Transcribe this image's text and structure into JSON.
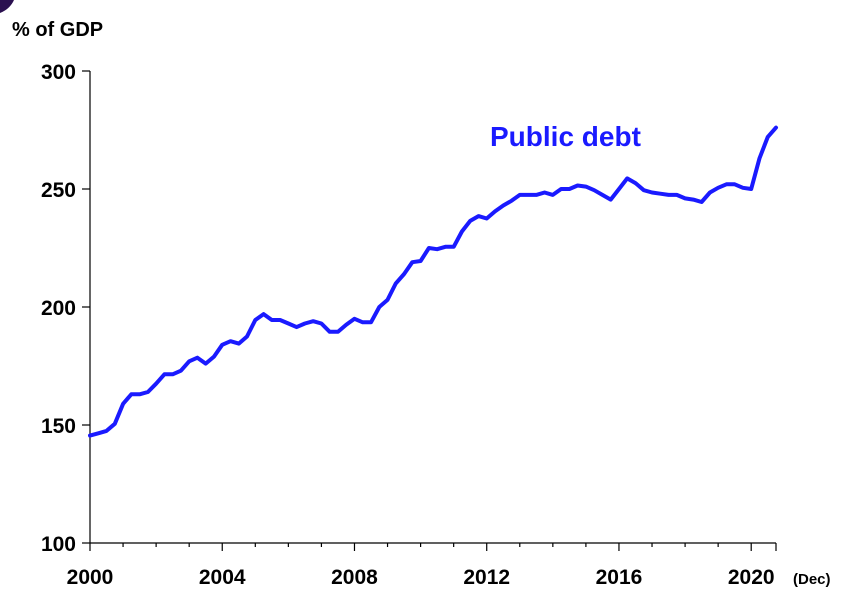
{
  "chart_data": {
    "type": "line",
    "ylabel": "% of GDP",
    "xlabel": "",
    "x_unit_note": "(Dec)",
    "ylim": [
      100,
      300
    ],
    "xlim": [
      2000,
      2020.75
    ],
    "yticks": [
      100,
      150,
      200,
      250,
      300
    ],
    "xticks": [
      2000,
      2004,
      2008,
      2012,
      2016,
      2020
    ],
    "grid": false,
    "series": [
      {
        "name": "Public debt",
        "color": "#1a1aff",
        "points": [
          [
            2000.0,
            145.5
          ],
          [
            2000.25,
            146.5
          ],
          [
            2000.5,
            147.5
          ],
          [
            2000.75,
            150.5
          ],
          [
            2001.0,
            159.0
          ],
          [
            2001.25,
            163.0
          ],
          [
            2001.5,
            163.0
          ],
          [
            2001.75,
            164.0
          ],
          [
            2002.0,
            167.5
          ],
          [
            2002.25,
            171.5
          ],
          [
            2002.5,
            171.5
          ],
          [
            2002.75,
            173.0
          ],
          [
            2003.0,
            177.0
          ],
          [
            2003.25,
            178.5
          ],
          [
            2003.5,
            176.0
          ],
          [
            2003.75,
            179.0
          ],
          [
            2004.0,
            184.0
          ],
          [
            2004.25,
            185.5
          ],
          [
            2004.5,
            184.5
          ],
          [
            2004.75,
            187.5
          ],
          [
            2005.0,
            194.5
          ],
          [
            2005.25,
            197.0
          ],
          [
            2005.5,
            194.5
          ],
          [
            2005.75,
            194.5
          ],
          [
            2006.0,
            193.0
          ],
          [
            2006.25,
            191.5
          ],
          [
            2006.5,
            193.0
          ],
          [
            2006.75,
            194.0
          ],
          [
            2007.0,
            193.0
          ],
          [
            2007.25,
            189.5
          ],
          [
            2007.5,
            189.5
          ],
          [
            2007.75,
            192.5
          ],
          [
            2008.0,
            195.0
          ],
          [
            2008.25,
            193.5
          ],
          [
            2008.5,
            193.5
          ],
          [
            2008.75,
            200.0
          ],
          [
            2009.0,
            203.0
          ],
          [
            2009.25,
            210.0
          ],
          [
            2009.5,
            214.0
          ],
          [
            2009.75,
            219.0
          ],
          [
            2010.0,
            219.5
          ],
          [
            2010.25,
            225.0
          ],
          [
            2010.5,
            224.5
          ],
          [
            2010.75,
            225.5
          ],
          [
            2011.0,
            225.5
          ],
          [
            2011.25,
            232.0
          ],
          [
            2011.5,
            236.5
          ],
          [
            2011.75,
            238.5
          ],
          [
            2012.0,
            237.5
          ],
          [
            2012.25,
            240.5
          ],
          [
            2012.5,
            243.0
          ],
          [
            2012.75,
            245.0
          ],
          [
            2013.0,
            247.5
          ],
          [
            2013.25,
            247.5
          ],
          [
            2013.5,
            247.5
          ],
          [
            2013.75,
            248.5
          ],
          [
            2014.0,
            247.5
          ],
          [
            2014.25,
            250.0
          ],
          [
            2014.5,
            250.0
          ],
          [
            2014.75,
            251.5
          ],
          [
            2015.0,
            251.0
          ],
          [
            2015.25,
            249.5
          ],
          [
            2015.5,
            247.5
          ],
          [
            2015.75,
            245.5
          ],
          [
            2016.0,
            250.0
          ],
          [
            2016.25,
            254.5
          ],
          [
            2016.5,
            252.5
          ],
          [
            2016.75,
            249.5
          ],
          [
            2017.0,
            248.5
          ],
          [
            2017.25,
            248.0
          ],
          [
            2017.5,
            247.5
          ],
          [
            2017.75,
            247.5
          ],
          [
            2018.0,
            246.0
          ],
          [
            2018.25,
            245.5
          ],
          [
            2018.5,
            244.5
          ],
          [
            2018.75,
            248.5
          ],
          [
            2019.0,
            250.5
          ],
          [
            2019.25,
            252.0
          ],
          [
            2019.5,
            252.0
          ],
          [
            2019.75,
            250.5
          ],
          [
            2020.0,
            250.0
          ],
          [
            2020.25,
            263.0
          ],
          [
            2020.5,
            272.0
          ],
          [
            2020.75,
            276.0
          ]
        ]
      }
    ]
  }
}
